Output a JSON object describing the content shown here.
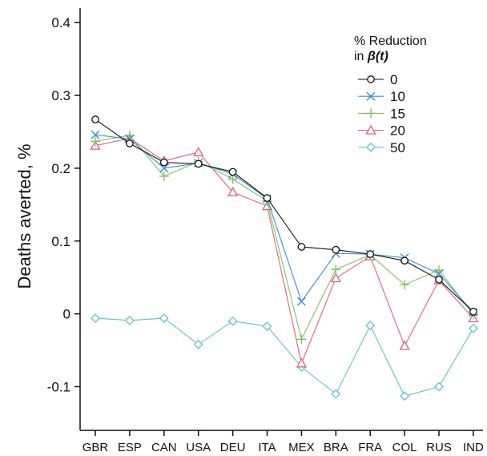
{
  "chart_data": {
    "type": "line",
    "ylabel": "Deaths averted, %",
    "xlabel": "",
    "categories": [
      "GBR",
      "ESP",
      "CAN",
      "USA",
      "DEU",
      "ITA",
      "MEX",
      "BRA",
      "FRA",
      "COL",
      "RUS",
      "IND"
    ],
    "ylim": [
      -0.16,
      0.42
    ],
    "yticks": [
      -0.1,
      0,
      0.1,
      0.2,
      0.3,
      0.4
    ],
    "ytick_labels": [
      "-0.1",
      "0",
      "0.1",
      "0.2",
      "0.3",
      "0.4"
    ],
    "grid": false,
    "legend": {
      "position": "top-right",
      "title_line1": "% Reduction",
      "title_line2_prefix": "in ",
      "title_line2_math": "β(t)"
    },
    "series": [
      {
        "name": "0",
        "color": "#111111",
        "marker": "circle",
        "values": [
          0.267,
          0.234,
          0.208,
          0.206,
          0.195,
          0.159,
          0.092,
          0.088,
          0.082,
          0.073,
          0.047,
          0.003
        ]
      },
      {
        "name": "10",
        "color": "#3b8ed0",
        "marker": "x",
        "values": [
          0.246,
          0.24,
          0.2,
          0.207,
          0.192,
          0.158,
          0.017,
          0.083,
          0.082,
          0.077,
          0.055,
          0.002
        ]
      },
      {
        "name": "15",
        "color": "#7dc35a",
        "marker": "plus",
        "values": [
          0.237,
          0.245,
          0.189,
          0.209,
          0.185,
          0.155,
          -0.035,
          0.061,
          0.081,
          0.04,
          0.06,
          -0.001
        ]
      },
      {
        "name": "20",
        "color": "#e0607a",
        "marker": "triangle",
        "values": [
          0.231,
          0.241,
          0.21,
          0.222,
          0.167,
          0.148,
          -0.068,
          0.049,
          0.079,
          -0.044,
          0.046,
          -0.006
        ]
      },
      {
        "name": "50",
        "color": "#5bc2d0",
        "marker": "diamond",
        "values": [
          -0.006,
          -0.009,
          -0.006,
          -0.042,
          -0.01,
          -0.017,
          -0.073,
          -0.11,
          -0.016,
          -0.113,
          -0.1,
          -0.02
        ]
      }
    ]
  }
}
